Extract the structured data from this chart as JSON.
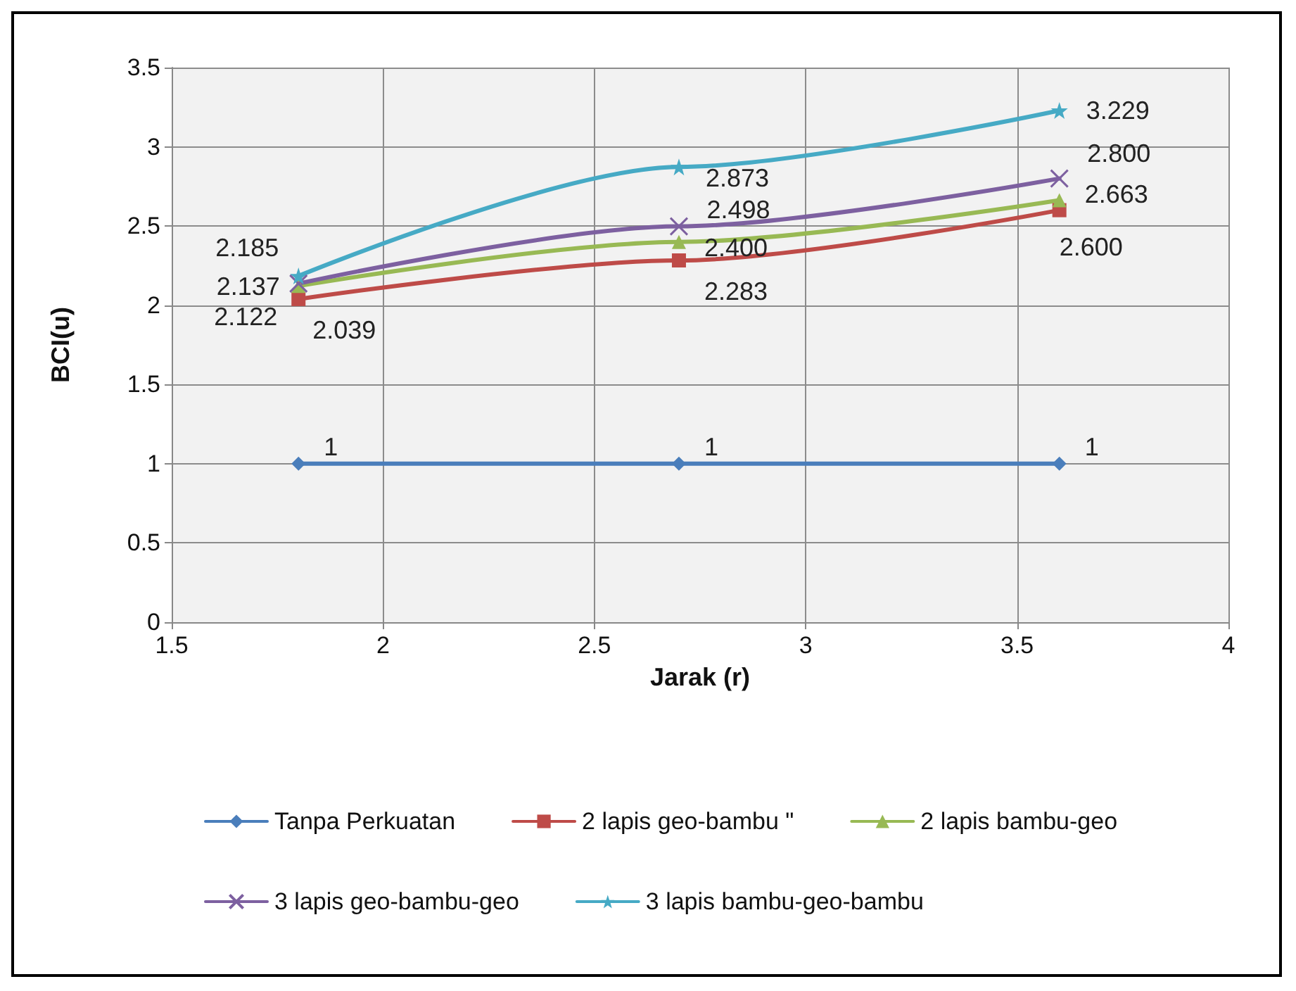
{
  "chart_data": {
    "type": "line",
    "xlabel": "Jarak (r)",
    "ylabel": "BCI(u)",
    "x": [
      1.8,
      2.7,
      3.6
    ],
    "xlim": [
      1.5,
      4
    ],
    "xticks": [
      1.5,
      2,
      2.5,
      3,
      3.5,
      4
    ],
    "ylim": [
      0,
      3.5
    ],
    "yticks": [
      0,
      0.5,
      1,
      1.5,
      2,
      2.5,
      3,
      3.5
    ],
    "grid": true,
    "legend": "bottom",
    "line_style": "solid",
    "series": [
      {
        "name": "Tanpa Perkuatan",
        "color": "#4a7ebb",
        "marker": "diamond",
        "values": [
          1,
          1,
          1
        ],
        "value_labels": [
          "1",
          "1",
          "1"
        ]
      },
      {
        "name": "2 lapis geo-bambu \"",
        "color": "#be4b48",
        "marker": "square",
        "values": [
          2.039,
          2.283,
          2.6
        ],
        "value_labels": [
          "2.039",
          "2.283",
          "2.600"
        ]
      },
      {
        "name": "2 lapis bambu-geo",
        "color": "#98b954",
        "marker": "triangle",
        "values": [
          2.122,
          2.4,
          2.663
        ],
        "value_labels": [
          "2.122",
          "2.400",
          "2.663"
        ]
      },
      {
        "name": "3 lapis geo-bambu-geo",
        "color": "#7d60a0",
        "marker": "cross",
        "values": [
          2.137,
          2.498,
          2.8
        ],
        "value_labels": [
          "2.137",
          "2.498",
          "2.800"
        ]
      },
      {
        "name": "3 lapis bambu-geo-bambu",
        "color": "#46aac5",
        "marker": "star",
        "values": [
          2.185,
          2.873,
          3.229
        ],
        "value_labels": [
          "2.185",
          "2.873",
          "3.229"
        ]
      }
    ]
  }
}
